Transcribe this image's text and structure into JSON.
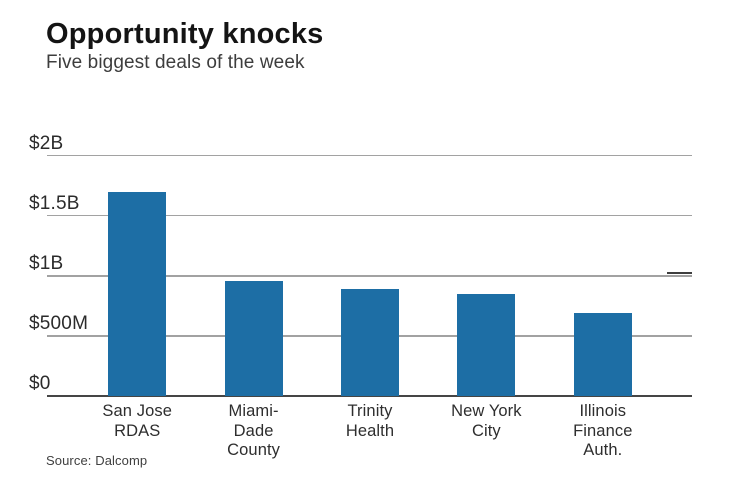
{
  "header": {
    "title": "Opportunity knocks",
    "subtitle": "Five biggest deals of the week"
  },
  "chart_data": {
    "type": "bar",
    "title": "Opportunity knocks",
    "subtitle": "Five biggest deals of the week",
    "source": "Source: Dalcomp",
    "unit": "USD millions",
    "categories": [
      [
        "San Jose",
        "RDAS"
      ],
      [
        "Miami-",
        "Dade",
        "County"
      ],
      [
        "Trinity",
        "Health"
      ],
      [
        "New York",
        "City"
      ],
      [
        "Illinois",
        "Finance",
        "Auth."
      ]
    ],
    "values": [
      1700,
      960,
      890,
      850,
      690
    ],
    "ylim": [
      0,
      2000
    ],
    "yticks": [
      {
        "value": 2000,
        "label": "$2B"
      },
      {
        "value": 1500,
        "label": "$1.5B"
      },
      {
        "value": 1000,
        "label": "$1B"
      },
      {
        "value": 500,
        "label": "$500M"
      },
      {
        "value": 0,
        "label": "$0"
      }
    ],
    "grid": true,
    "legend": "none",
    "colors": {
      "bar": "#1d6ea5",
      "gridline": "#a2a2a2",
      "baseline": "#454545",
      "title": "#141414",
      "text": "#2e2e2e"
    }
  },
  "footer": {
    "source": "Source: Dalcomp"
  }
}
